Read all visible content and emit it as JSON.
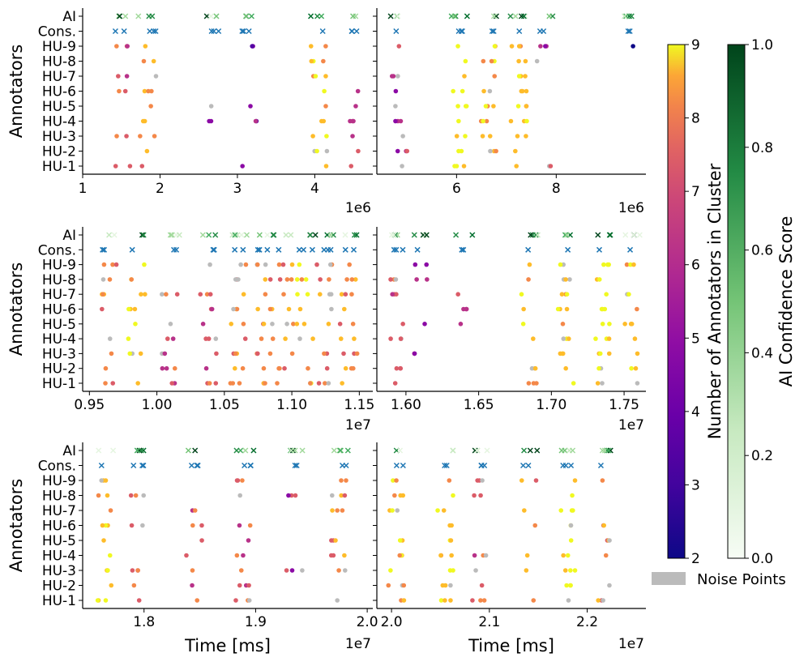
{
  "chart_data": {
    "type": "scatter",
    "description_labels": {
      "ylabel": "Annotators",
      "xlabel": "Time [ms]",
      "categories": [
        "HU-1",
        "HU-2",
        "HU-3",
        "HU-4",
        "HU-5",
        "HU-6",
        "HU-7",
        "HU-8",
        "HU-9",
        "Cons.",
        "AI"
      ]
    },
    "panels": [
      {
        "id": "p1",
        "xlim": [
          1000000,
          4750000
        ],
        "ticks": [
          1000000,
          2000000,
          3000000,
          4000000
        ],
        "tick_labels": [
          "1",
          "2",
          "3",
          "4"
        ],
        "exponent": "1e6",
        "xlabel": "",
        "show_ylabels": true,
        "clusters": [
          [
            1500000,
            0.8
          ],
          [
            1850000,
            0.9
          ],
          [
            2700000,
            0.4
          ],
          [
            3150000,
            0.3
          ],
          [
            4050000,
            1.0
          ],
          [
            4450000,
            0.6
          ]
        ]
      },
      {
        "id": "p2",
        "xlim": [
          4400000,
          9800000
        ],
        "ticks": [
          6000000,
          8000000
        ],
        "tick_labels": [
          "6",
          "8"
        ],
        "exponent": "1e6",
        "xlabel": "",
        "show_ylabels": false,
        "clusters": [
          [
            4850000,
            0.7
          ],
          [
            6050000,
            1.0
          ],
          [
            6650000,
            0.8
          ],
          [
            7250000,
            0.9
          ],
          [
            7750000,
            0.5
          ],
          [
            9550000,
            0.3
          ]
        ]
      },
      {
        "id": "p3",
        "xlim": [
          9450000,
          11600000
        ],
        "ticks": [
          9500000,
          10000000,
          10500000,
          11000000,
          11500000
        ],
        "tick_labels": [
          "0.95",
          "1.00",
          "1.05",
          "1.10",
          "1.15"
        ],
        "exponent": "1e7",
        "xlabel": "",
        "show_ylabels": true,
        "clusters": [
          [
            9650000,
            0.9
          ],
          [
            9850000,
            0.8
          ],
          [
            10100000,
            0.7
          ],
          [
            10380000,
            0.8
          ],
          [
            10600000,
            0.9
          ],
          [
            10800000,
            1.0
          ],
          [
            10950000,
            1.0
          ],
          [
            11100000,
            0.9
          ],
          [
            11250000,
            0.8
          ],
          [
            11420000,
            0.9
          ]
        ]
      },
      {
        "id": "p4",
        "xlim": [
          15800000,
          17650000
        ],
        "ticks": [
          16000000,
          16500000,
          17000000,
          17500000
        ],
        "tick_labels": [
          "1.60",
          "1.65",
          "1.70",
          "1.75"
        ],
        "exponent": "1e7",
        "xlabel": "",
        "show_ylabels": false,
        "clusters": [
          [
            15950000,
            0.6
          ],
          [
            16100000,
            0.5
          ],
          [
            16400000,
            0.5
          ],
          [
            16850000,
            0.9
          ],
          [
            17100000,
            1.0
          ],
          [
            17350000,
            1.0
          ],
          [
            17550000,
            0.9
          ]
        ]
      },
      {
        "id": "p5",
        "xlim": [
          17450000,
          20050000
        ],
        "ticks": [
          18000000,
          19000000,
          20000000
        ],
        "tick_labels": [
          "1.8",
          "1.9",
          "2.0"
        ],
        "exponent": "1e7",
        "xlabel": "Time [ms]",
        "show_ylabels": true,
        "clusters": [
          [
            17650000,
            1.0
          ],
          [
            17950000,
            0.7
          ],
          [
            18450000,
            0.6
          ],
          [
            18900000,
            0.8
          ],
          [
            19350000,
            0.5
          ],
          [
            19750000,
            0.8
          ]
        ]
      },
      {
        "id": "p6",
        "xlim": [
          19850000,
          22600000
        ],
        "ticks": [
          20000000,
          21000000,
          22000000
        ],
        "tick_labels": [
          "2.0",
          "2.1",
          "2.2"
        ],
        "exponent": "1e7",
        "xlabel": "Time [ms]",
        "show_ylabels": false,
        "clusters": [
          [
            20050000,
            0.9
          ],
          [
            20550000,
            1.0
          ],
          [
            20900000,
            0.8
          ],
          [
            21400000,
            0.9
          ],
          [
            21800000,
            1.0
          ],
          [
            22150000,
            0.8
          ]
        ]
      }
    ],
    "colorbars": [
      {
        "label": "Number of Annotators in Cluster",
        "range": [
          2,
          9
        ],
        "ticks": [
          "2",
          "3",
          "4",
          "5",
          "6",
          "7",
          "8",
          "9"
        ],
        "colormap": "plasma"
      },
      {
        "label": "AI Confidence Score",
        "range": [
          0.0,
          1.0
        ],
        "ticks": [
          "0.0",
          "0.2",
          "0.4",
          "0.6",
          "0.8",
          "1.0"
        ],
        "colormap": "greens"
      }
    ],
    "legend": {
      "entries": [
        "Noise Points"
      ],
      "placement": "lower-right"
    }
  }
}
